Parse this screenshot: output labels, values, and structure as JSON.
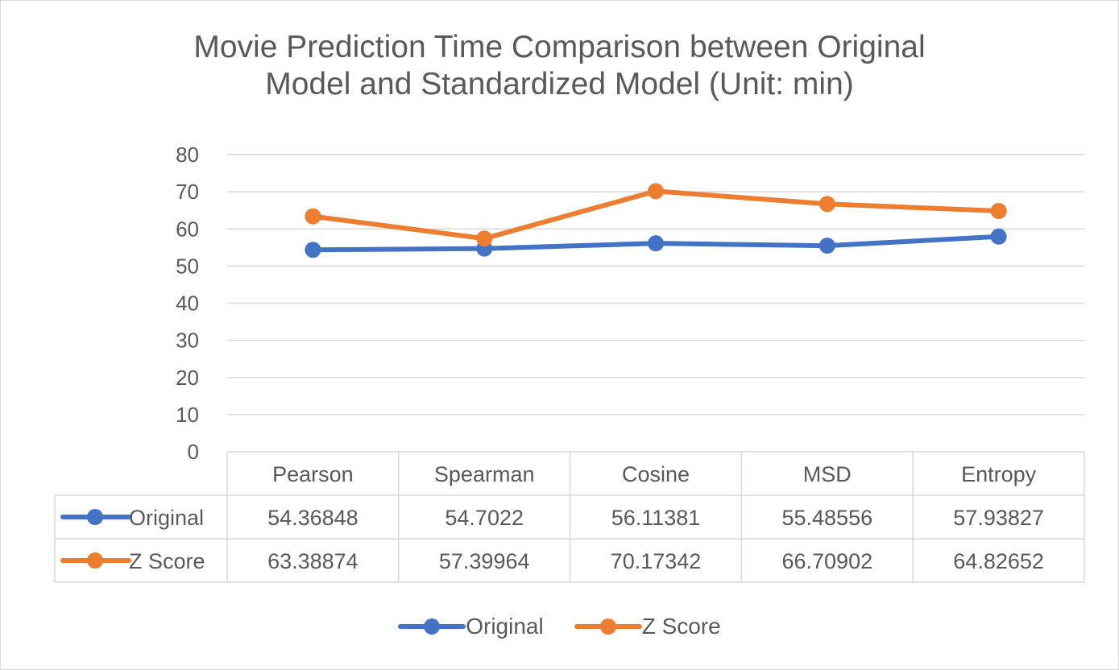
{
  "title_lines": [
    "Movie Prediction Time Comparison between Original",
    "Model and Standardized Model (Unit: min)"
  ],
  "colors": {
    "original": "#4472C4",
    "zscore": "#ED7D31",
    "grid": "#d9d9d9",
    "text": "#595959"
  },
  "chart_data": {
    "type": "line",
    "title": "Movie Prediction Time Comparison between Original Model and Standardized Model (Unit: min)",
    "categories": [
      "Pearson",
      "Spearman",
      "Cosine",
      "MSD",
      "Entropy"
    ],
    "series": [
      {
        "name": "Original",
        "values": [
          54.36848,
          54.7022,
          56.11381,
          55.48556,
          57.93827
        ],
        "color": "#4472C4"
      },
      {
        "name": "Z Score",
        "values": [
          63.38874,
          57.39964,
          70.17342,
          66.70902,
          64.82652
        ],
        "color": "#ED7D31"
      }
    ],
    "yticks": [
      0,
      10,
      20,
      30,
      40,
      50,
      60,
      70,
      80
    ],
    "ylim": [
      0,
      80
    ],
    "grid": true,
    "data_table": true,
    "legend_position": "bottom"
  }
}
